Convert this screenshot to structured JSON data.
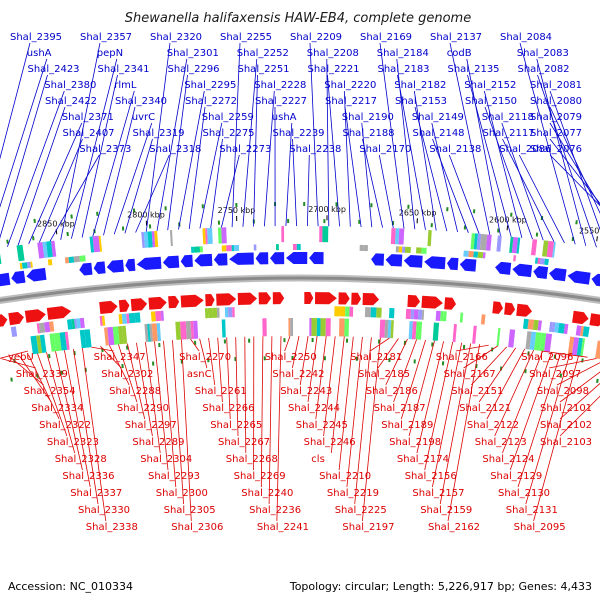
{
  "title": "Shewanella halifaxensis HAW-EB4, complete genome",
  "accession_label": "Accession: NC_010334",
  "summary_label": "Topology: circular; Length: 5,226,917 bp; Genes: 4,433",
  "colors": {
    "upper_labels": "#0000cc",
    "lower_labels": "#dd0000",
    "forward_strand": "#1a1aff",
    "reverse_strand": "#ee1111",
    "backbone": "#8a8a8a",
    "tick_marks": "#228b22"
  },
  "scale_ticks": [
    "2900 kbp",
    "2850 kbp",
    "2800 kbp",
    "2750 kbp",
    "2700 kbp",
    "2650 kbp",
    "2600 kbp",
    "2550 kbp"
  ],
  "upper_genes": [
    "Shal_2395",
    "ushA",
    "Shal_2423",
    "Shal_2380",
    "Shal_2422",
    "Shal_2371",
    "Shal_2407",
    "Shal_2373",
    "Shal_2357",
    "pepN",
    "Shal_2341",
    "rlmL",
    "Shal_2340",
    "uvrC",
    "Shal_2319",
    "Shal_2318",
    "Shal_2320",
    "Shal_2301",
    "Shal_2296",
    "Shal_2295",
    "Shal_2272",
    "Shal_2259",
    "Shal_2275",
    "Shal_2273",
    "Shal_2255",
    "Shal_2252",
    "Shal_2251",
    "Shal_2228",
    "Shal_2227",
    "ushA",
    "Shal_2239",
    "Shal_2238",
    "Shal_2209",
    "Shal_2208",
    "Shal_2221",
    "Shal_2220",
    "Shal_2217",
    "Shal_2190",
    "Shal_2188",
    "Shal_2170",
    "Shal_2169",
    "Shal_2184",
    "Shal_2183",
    "Shal_2182",
    "Shal_2153",
    "Shal_2149",
    "Shal_2148",
    "Shal_2138",
    "Shal_2137",
    "codB",
    "Shal_2135",
    "Shal_2152",
    "Shal_2150",
    "Shal_2118",
    "Shal_2117",
    "Shal_2086",
    "Shal_2084",
    "Shal_2083",
    "Shal_2082",
    "Shal_2081",
    "Shal_2080",
    "Shal_2079",
    "Shal_2077",
    "Shal_2076"
  ],
  "lower_genes": [
    "yebU",
    "Shal_2339",
    "Shal_2354",
    "Shal_2334",
    "Shal_2322",
    "Shal_2323",
    "Shal_2328",
    "Shal_2336",
    "Shal_2337",
    "Shal_2330",
    "Shal_2338",
    "Shal_2347",
    "Shal_2302",
    "Shal_2288",
    "Shal_2290",
    "Shal_2297",
    "Shal_2289",
    "Shal_2304",
    "Shal_2293",
    "Shal_2300",
    "Shal_2305",
    "Shal_2306",
    "Shal_2270",
    "asnC",
    "Shal_2261",
    "Shal_2266",
    "Shal_2265",
    "Shal_2267",
    "Shal_2268",
    "Shal_2269",
    "Shal_2240",
    "Shal_2236",
    "Shal_2241",
    "Shal_2250",
    "Shal_2242",
    "Shal_2243",
    "Shal_2244",
    "Shal_2245",
    "Shal_2246",
    "cls",
    "Shal_2210",
    "Shal_2219",
    "Shal_2225",
    "Shal_2197",
    "Shal_2181",
    "Shal_2185",
    "Shal_2186",
    "Shal_2187",
    "Shal_2189",
    "Shal_2198",
    "Shal_2174",
    "Shal_2156",
    "Shal_2157",
    "Shal_2159",
    "Shal_2162",
    "Shal_2166",
    "Shal_2167",
    "Shal_2151",
    "Shal_2121",
    "Shal_2122",
    "Shal_2123",
    "Shal_2124",
    "Shal_2129",
    "Shal_2130",
    "Shal_2131",
    "Shal_2095",
    "Shal_2096",
    "Shal_2097",
    "Shal_2098",
    "Shal_2101",
    "Shal_2102",
    "Shal_2103"
  ]
}
